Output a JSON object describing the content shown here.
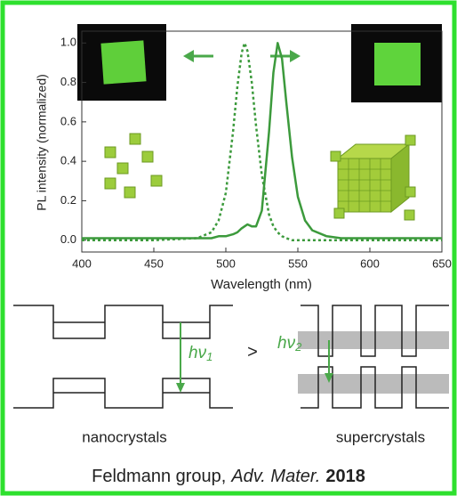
{
  "chart_data": {
    "type": "line",
    "x_label": "Wavelength (nm)",
    "y_label": "PL intensity (normalized)",
    "x": [
      400,
      450,
      480,
      490,
      495,
      500,
      505,
      508,
      511,
      513,
      515,
      518,
      521,
      525,
      530,
      533,
      536,
      539,
      542,
      546,
      550,
      555,
      560,
      570,
      580,
      600,
      650
    ],
    "series": [
      {
        "color": "#3c9a3c",
        "dash": true,
        "values": [
          0.0,
          0.0,
          0.01,
          0.04,
          0.1,
          0.24,
          0.55,
          0.78,
          0.95,
          1.0,
          0.96,
          0.8,
          0.58,
          0.33,
          0.13,
          0.07,
          0.04,
          0.02,
          0.01,
          0.0,
          0.0,
          0.0,
          0.0,
          0.0,
          0.0,
          0.0,
          0.0
        ]
      },
      {
        "color": "#3c9a3c",
        "dash": false,
        "values": [
          0.01,
          0.01,
          0.01,
          0.01,
          0.02,
          0.02,
          0.03,
          0.04,
          0.06,
          0.07,
          0.08,
          0.07,
          0.07,
          0.15,
          0.55,
          0.85,
          1.0,
          0.92,
          0.7,
          0.42,
          0.22,
          0.1,
          0.05,
          0.02,
          0.01,
          0.01,
          0.01
        ]
      }
    ],
    "xlim": [
      400,
      650
    ],
    "xticks": [
      400,
      450,
      500,
      550,
      600,
      650
    ],
    "ylim": [
      -0.06,
      1.06
    ],
    "yticks": [
      {
        "value": 0,
        "label": "0.0"
      },
      0.2,
      0.4,
      0.6,
      0.8,
      {
        "value": 1,
        "label": "1.0"
      }
    ],
    "grid": false
  },
  "diagram": {
    "left_label": "nanocrystals",
    "right_label": "supercrystals",
    "comparison": ">",
    "photon_1": {
      "symbol": "hν",
      "subscript": "1"
    },
    "photon_2": {
      "symbol": "hν",
      "subscript": "2"
    }
  },
  "caption": {
    "authors": "Feldmann group,",
    "journal": "Adv. Mater.",
    "year": "2018"
  }
}
